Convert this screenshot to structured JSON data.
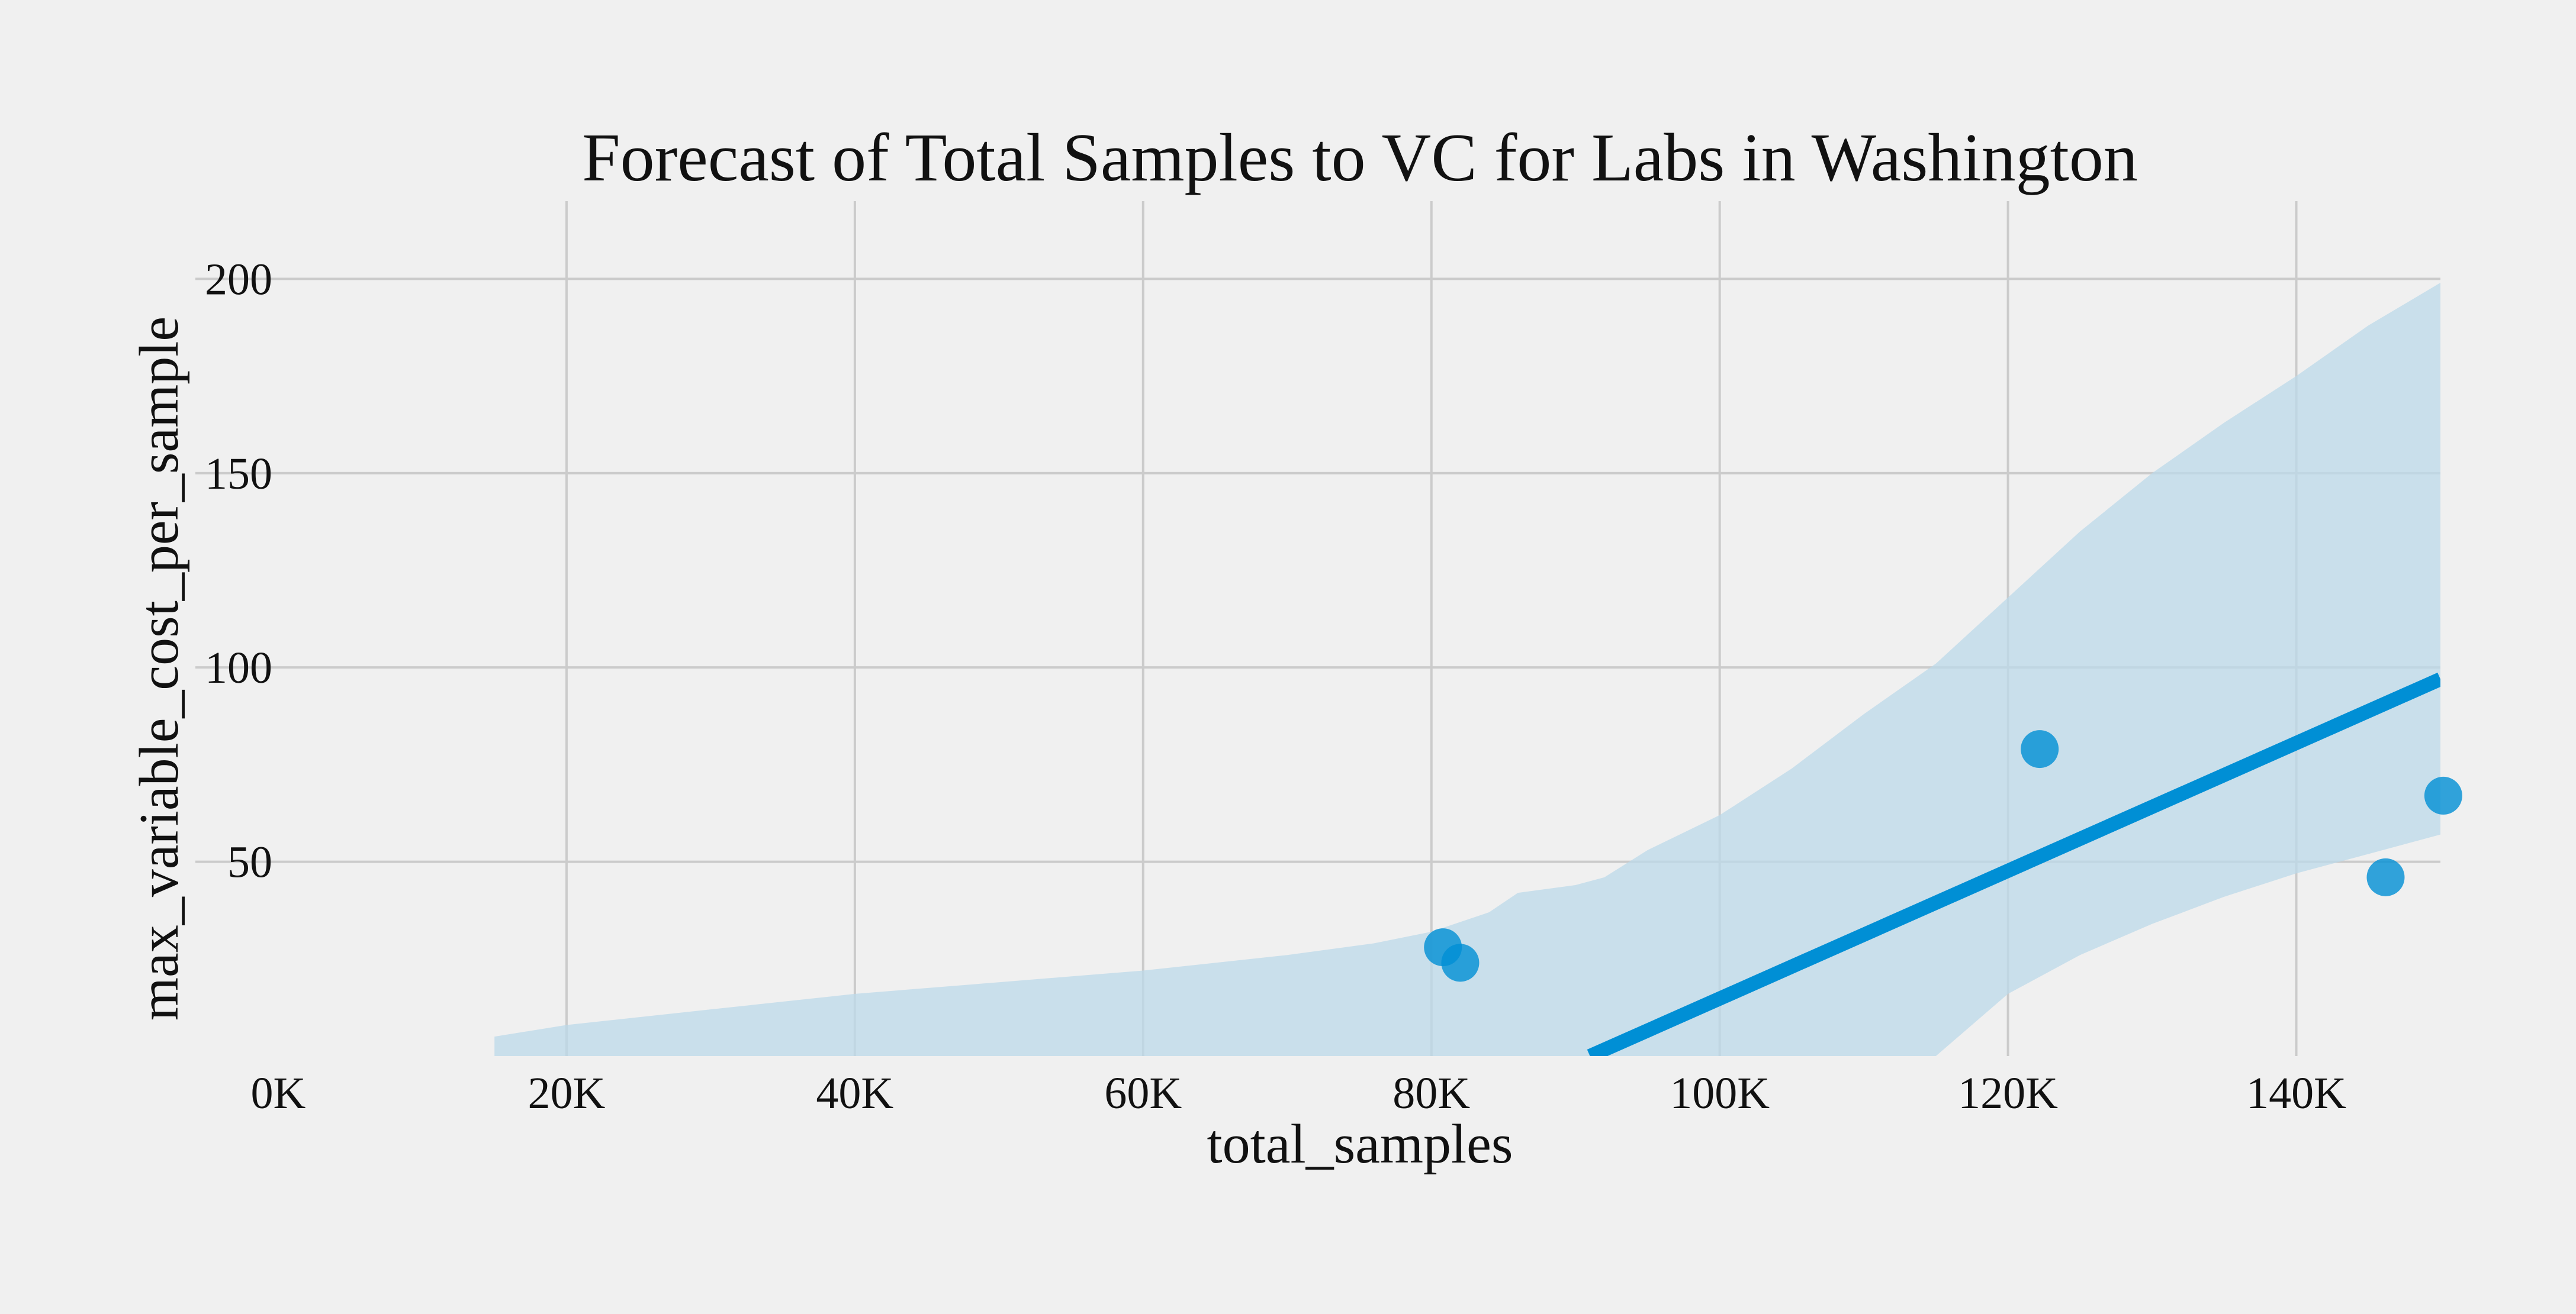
{
  "chart_data": {
    "type": "scatter",
    "title": "Forecast of Total Samples to VC for Labs in Washington",
    "xlabel": "total_samples",
    "ylabel": "max_variable_cost_per_sample",
    "xlim": [
      0,
      150000
    ],
    "ylim": [
      0,
      220
    ],
    "x_ticks": [
      0,
      20000,
      40000,
      60000,
      80000,
      100000,
      120000,
      140000
    ],
    "x_tick_labels": [
      "0K",
      "20K",
      "40K",
      "60K",
      "80K",
      "100K",
      "120K",
      "140K"
    ],
    "y_ticks": [
      50,
      100,
      150,
      200
    ],
    "y_tick_labels": [
      "50",
      "100",
      "150",
      "200"
    ],
    "grid": true,
    "colors": {
      "background": "#f0f0f0",
      "grid": "#cbcbcb",
      "points": "#008fd5",
      "regression_line": "#008fd5",
      "confidence_band": "#bcd9ea"
    },
    "points": [
      {
        "x": 80800,
        "y": 28
      },
      {
        "x": 82000,
        "y": 24
      },
      {
        "x": 122200,
        "y": 79
      },
      {
        "x": 146200,
        "y": 46
      },
      {
        "x": 150200,
        "y": 67
      }
    ],
    "regression_line": {
      "x": [
        91000,
        150000
      ],
      "y": [
        0,
        97
      ]
    },
    "confidence_band": {
      "x": [
        15000,
        20000,
        30000,
        40000,
        50000,
        60000,
        70000,
        76000,
        80000,
        84000,
        86000,
        90000,
        92000,
        95000,
        100000,
        105000,
        110000,
        115000,
        120000,
        125000,
        130000,
        135000,
        140000,
        145000,
        150000
      ],
      "upper": [
        5,
        8,
        12,
        16,
        19,
        22,
        26,
        29,
        32,
        37,
        42,
        44,
        46,
        53,
        62,
        74,
        88,
        101,
        118,
        135,
        150,
        163,
        175,
        188,
        199
      ],
      "lower": [
        0,
        0,
        0,
        0,
        0,
        0,
        0,
        0,
        0,
        0,
        0,
        0,
        0,
        0,
        0,
        0,
        0,
        0,
        16,
        26,
        34,
        41,
        47,
        52,
        57
      ]
    }
  }
}
